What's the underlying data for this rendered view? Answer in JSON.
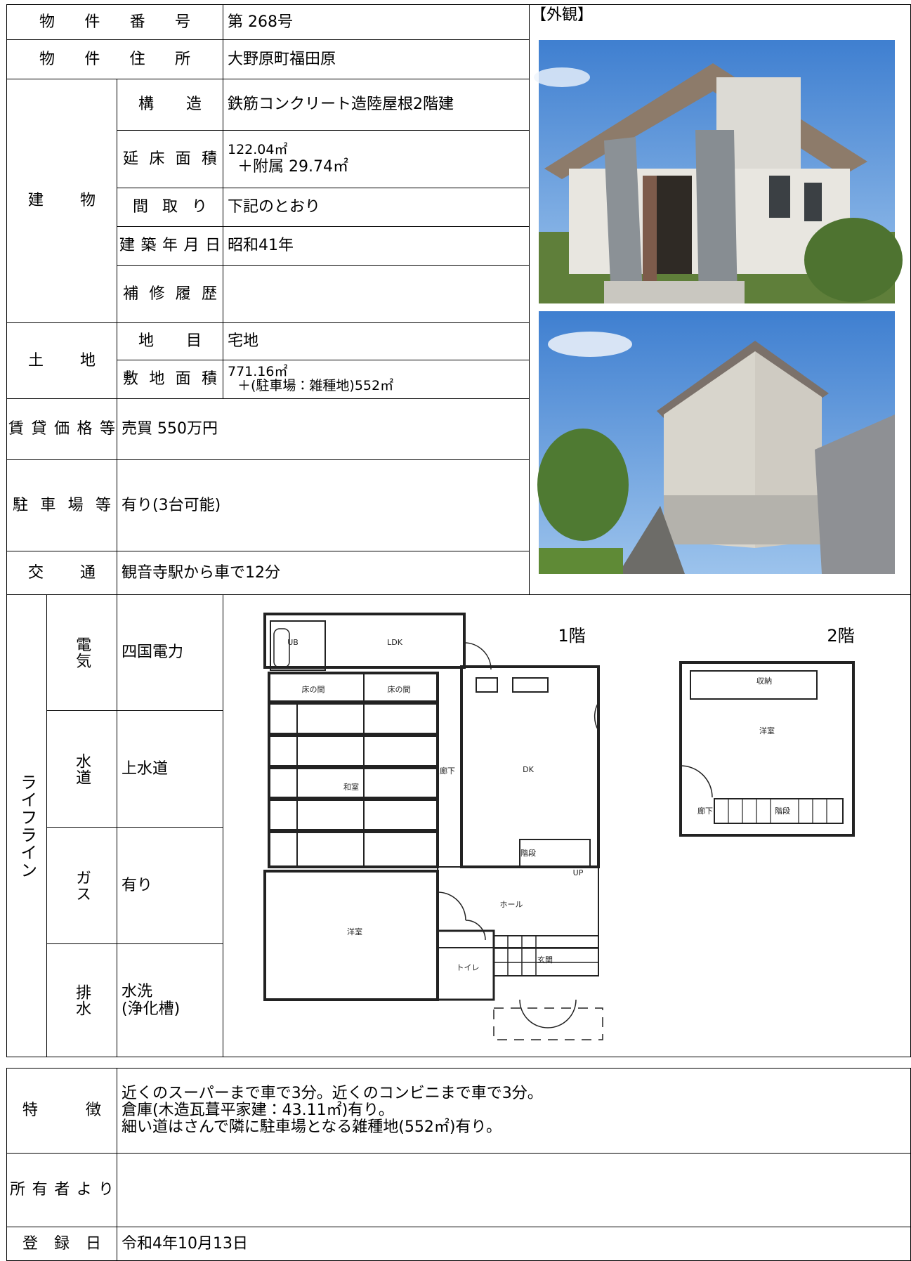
{
  "property": {
    "number": {
      "label": "物件番号",
      "value": "第 268号"
    },
    "address": {
      "label": "物件住所",
      "value": "大野原町福田原"
    },
    "building": {
      "label": "建物",
      "structure": {
        "label": "構造",
        "value": "鉄筋コンクリート造陸屋根2階建"
      },
      "floor_area": {
        "label": "延床面積",
        "lines": [
          "122.04㎡",
          "＋附属 29.74㎡"
        ]
      },
      "layout": {
        "label": "間取り",
        "value": "下記のとおり"
      },
      "built": {
        "label": "建築年月日",
        "value": "昭和41年"
      },
      "repairs": {
        "label": "補修履歴"
      }
    },
    "land": {
      "label": "土地",
      "category": {
        "label": "地目",
        "value": "宅地"
      },
      "area": {
        "label": "敷地面積",
        "lines": [
          "771.16㎡",
          "＋(駐車場：雑種地)552㎡"
        ]
      }
    },
    "price": {
      "label": "賃貸価格等",
      "value": "売買 550万円"
    },
    "parking": {
      "label": "駐車場等",
      "value": "有り(3台可能)"
    },
    "transport": {
      "label": "交通",
      "value": "観音寺駅から車で12分"
    }
  },
  "photos": {
    "label": "【外観】"
  },
  "lifeline": {
    "label": "ライフライン",
    "items": [
      {
        "label": "電気",
        "lines": [
          "四国電力"
        ]
      },
      {
        "label": "水道",
        "lines": [
          "上水道"
        ]
      },
      {
        "label": "ガス",
        "lines": [
          "有り"
        ]
      },
      {
        "label": "排水",
        "lines": [
          "水洗",
          "(浄化槽)"
        ]
      }
    ]
  },
  "floor_plan": {
    "floor1": {
      "title": "1階",
      "rooms": [
        "UB",
        "LDK",
        "床の間",
        "床の間",
        "和室",
        "廊下",
        "DK",
        "階段",
        "UP",
        "ホール",
        "洋室",
        "トイレ",
        "玄関"
      ]
    },
    "floor2": {
      "title": "2階",
      "rooms": [
        "収納",
        "洋室",
        "廊下",
        "階段"
      ]
    }
  },
  "notes": {
    "features": {
      "label": "特徴",
      "lines": [
        "近くのスーパーまで車で3分。近くのコンビニまで車で3分。",
        "倉庫(木造瓦葺平家建：43.11㎡)有り。",
        "細い道はさんで隣に駐車場となる雑種地(552㎡)有り。"
      ]
    },
    "owner": {
      "label": "所有者より"
    },
    "registered": {
      "label": "登録日",
      "value": "令和4年10月13日"
    }
  }
}
